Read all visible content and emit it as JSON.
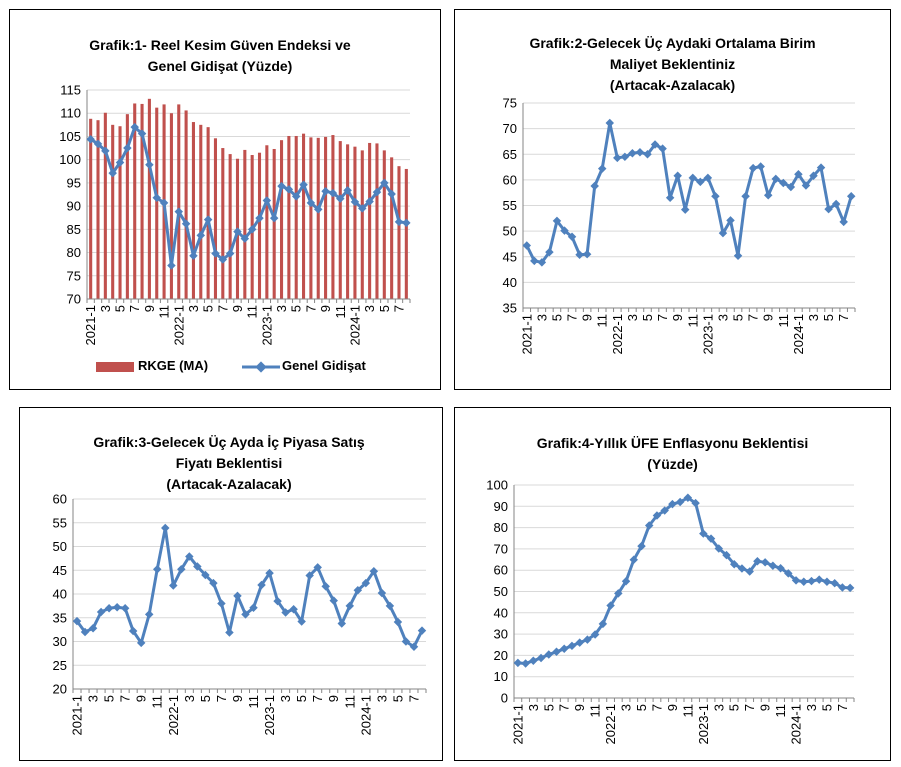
{
  "charts": [
    {
      "title_lines": [
        "Grafik:1- Reel Kesim Güven Endeksi ve",
        "Genel Gidişat (Yüzde)"
      ]
    },
    {
      "title_lines": [
        "Grafik:2-Gelecek Üç Aydaki Ortalama Birim",
        "Maliyet Beklentiniz",
        "(Artacak-Azalacak)"
      ]
    },
    {
      "title_lines": [
        "Grafik:3-Gelecek Üç Ayda İç Piyasa Satış",
        "Fiyatı Beklentisi",
        "(Artacak-Azalacak)"
      ]
    },
    {
      "title_lines": [
        "Grafik:4-Yıllık ÜFE Enflasyonu Beklentisi",
        "(Yüzde)"
      ]
    }
  ],
  "colors": {
    "bar": "#C0504D",
    "line": "#4F81BD",
    "grid": "#D9D9D9",
    "axis": "#868686"
  },
  "chart_data": [
    {
      "type": "bar+line",
      "title": "Grafik:1- Reel Kesim Güven Endeksi ve Genel Gidişat (Yüzde)",
      "x_tick_labels": [
        "2021-1",
        "3",
        "5",
        "7",
        "9",
        "11",
        "2022-1",
        "3",
        "5",
        "7",
        "9",
        "11",
        "2023-1",
        "3",
        "5",
        "7",
        "9",
        "11",
        "2024-1",
        "3",
        "5",
        "7"
      ],
      "ylim": [
        70,
        115
      ],
      "yticks": [
        70,
        75,
        80,
        85,
        90,
        95,
        100,
        105,
        110,
        115
      ],
      "legend": [
        "RKGE (MA)",
        "Genel Gidişat"
      ],
      "series": [
        {
          "name": "RKGE (MA)",
          "kind": "bar",
          "values": [
            108.8,
            108.5,
            110.1,
            107.5,
            107.2,
            109.8,
            112.1,
            112.0,
            113.1,
            111.2,
            111.9,
            110.0,
            111.9,
            110.6,
            108.1,
            107.5,
            107.0,
            104.6,
            102.5,
            101.2,
            100.2,
            102.1,
            101.0,
            101.5,
            103.1,
            102.3,
            104.2,
            105.1,
            105.1,
            105.6,
            104.8,
            104.7,
            104.9,
            105.3,
            104.0,
            103.3,
            102.8,
            102.0,
            103.6,
            103.5,
            102.0,
            100.5,
            98.6,
            98.0
          ]
        },
        {
          "name": "Genel Gidişat",
          "kind": "line",
          "values": [
            104.4,
            103.4,
            101.9,
            97.1,
            99.4,
            102.5,
            107.0,
            105.6,
            98.9,
            91.8,
            90.7,
            77.2,
            88.8,
            86.2,
            79.3,
            83.7,
            87.1,
            79.8,
            78.5,
            79.8,
            84.5,
            83.0,
            85.0,
            87.4,
            91.2,
            87.4,
            94.3,
            93.6,
            92.1,
            94.6,
            90.7,
            89.3,
            93.2,
            92.8,
            91.6,
            93.4,
            90.9,
            89.5,
            91.0,
            93.0,
            95.0,
            92.6,
            86.6,
            86.4
          ]
        }
      ]
    },
    {
      "type": "line",
      "title": "Grafik:2-Gelecek Üç Aydaki Ortalama Birim Maliyet Beklentiniz (Artacak-Azalacak)",
      "x_tick_labels": [
        "2021-1",
        "3",
        "5",
        "7",
        "9",
        "11",
        "2022-1",
        "3",
        "5",
        "7",
        "9",
        "11",
        "2023-1",
        "3",
        "5",
        "7",
        "9",
        "11",
        "2024-1",
        "3",
        "5",
        "7"
      ],
      "ylim": [
        35,
        75
      ],
      "yticks": [
        35,
        40,
        45,
        50,
        55,
        60,
        65,
        70,
        75
      ],
      "series": [
        {
          "values": [
            47.2,
            44.2,
            43.9,
            45.9,
            52.0,
            50.1,
            48.9,
            45.4,
            45.5,
            58.8,
            62.2,
            71.1,
            64.3,
            64.5,
            65.2,
            65.4,
            65.0,
            66.9,
            66.1,
            56.5,
            60.8,
            54.2,
            60.4,
            59.6,
            60.4,
            56.8,
            49.6,
            52.1,
            45.2,
            56.8,
            62.3,
            62.6,
            57.0,
            60.2,
            59.4,
            58.6,
            61.1,
            58.9,
            60.8,
            62.4,
            54.3,
            55.3,
            51.8,
            56.8
          ]
        }
      ]
    },
    {
      "type": "line",
      "title": "Grafik:3-Gelecek Üç Ayda İç Piyasa Satış Fiyatı Beklentisi (Artacak-Azalacak)",
      "x_tick_labels": [
        "2021-1",
        "3",
        "5",
        "7",
        "9",
        "11",
        "2022-1",
        "3",
        "5",
        "7",
        "9",
        "11",
        "2023-1",
        "3",
        "5",
        "7",
        "9",
        "11",
        "2024-1",
        "3",
        "5",
        "7"
      ],
      "ylim": [
        20,
        60
      ],
      "yticks": [
        20,
        25,
        30,
        35,
        40,
        45,
        50,
        55,
        60
      ],
      "series": [
        {
          "values": [
            34.3,
            32.0,
            32.8,
            36.2,
            37.0,
            37.2,
            37.0,
            32.2,
            29.7,
            35.7,
            45.2,
            53.9,
            41.8,
            45.2,
            47.9,
            45.8,
            44.0,
            42.3,
            38.0,
            31.9,
            39.6,
            35.7,
            37.1,
            41.9,
            44.4,
            38.5,
            36.1,
            36.8,
            34.2,
            43.9,
            45.6,
            41.6,
            38.6,
            33.8,
            37.5,
            40.8,
            42.3,
            44.8,
            40.2,
            37.5,
            34.1,
            30.0,
            28.9,
            32.3
          ]
        }
      ]
    },
    {
      "type": "line",
      "title": "Grafik:4-Yıllık ÜFE Enflasyonu Beklentisi (Yüzde)",
      "x_tick_labels": [
        "2021-1",
        "3",
        "5",
        "7",
        "9",
        "11",
        "2022-1",
        "3",
        "5",
        "7",
        "9",
        "11",
        "2023-1",
        "3",
        "5",
        "7",
        "9",
        "11",
        "2024-1",
        "3",
        "5",
        "7"
      ],
      "ylim": [
        0,
        100
      ],
      "yticks": [
        0,
        10,
        20,
        30,
        40,
        50,
        60,
        70,
        80,
        90,
        100
      ],
      "series": [
        {
          "values": [
            16.5,
            16.2,
            17.5,
            18.8,
            20.4,
            21.7,
            23.1,
            24.5,
            26.0,
            27.4,
            29.8,
            34.8,
            43.4,
            49.1,
            54.8,
            64.9,
            71.3,
            81.0,
            85.7,
            88.0,
            91.0,
            92.0,
            94.0,
            91.5,
            77.2,
            74.8,
            70.2,
            67.1,
            62.8,
            60.8,
            59.4,
            64.2,
            63.7,
            62.1,
            60.9,
            58.5,
            55.2,
            54.6,
            54.9,
            55.6,
            54.6,
            53.9,
            51.9,
            51.7
          ]
        }
      ]
    }
  ]
}
